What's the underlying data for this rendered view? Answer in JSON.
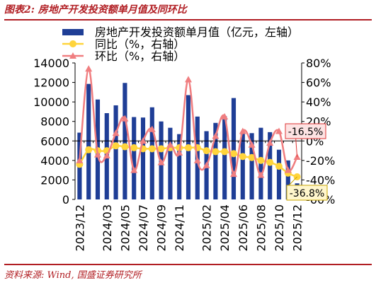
{
  "figure": {
    "title": "图表2:  房地产开发投资额单月值及同环比",
    "source": "资料来源:  Wind,  国盛证券研究所"
  },
  "colors": {
    "accent": "#b11e23",
    "bar": "#1f3e96",
    "yoy_line": "#ffd43b",
    "mom_line": "#f07e80",
    "yoy_callout_bg": "#fff6cc",
    "mom_callout_bg": "#fde3e3"
  },
  "chart_data": {
    "type": "bar+line",
    "categories": [
      "2023/12",
      "2024/01",
      "2024/02",
      "2024/03",
      "2024/04",
      "2024/05",
      "2024/06",
      "2024/07",
      "2024/08",
      "2024/09",
      "2024/10",
      "2024/11",
      "2024/12",
      "2025/01",
      "2025/02",
      "2025/03",
      "2025/04",
      "2025/05",
      "2025/06",
      "2025/07",
      "2025/08",
      "2025/09",
      "2025/10",
      "2025/11",
      "2025/12"
    ],
    "x_tick_labels": [
      "2023/12",
      "2024/03",
      "2024/05",
      "2024/07",
      "2024/09",
      "2024/11",
      "2025/02",
      "2025/04",
      "2025/06",
      "2025/08",
      "2025/10",
      "2025/12"
    ],
    "series": [
      {
        "name": "房地产开发投资额单月值（亿元，左轴）",
        "type": "bar",
        "axis": "left",
        "values": [
          6850,
          11850,
          10250,
          8850,
          9650,
          11950,
          8450,
          8400,
          9450,
          8000,
          7350,
          6700,
          10700,
          8500,
          7000,
          7850,
          8550,
          10400,
          6950,
          6800,
          7350,
          6900,
          5100,
          4000,
          1650
        ]
      },
      {
        "name": "同比（%，右轴）",
        "type": "line",
        "axis": "right",
        "values": [
          -24,
          -9,
          -10,
          -10,
          -5,
          -6,
          -7,
          -8,
          -8,
          -8,
          -7,
          -7,
          -7,
          -7,
          -10,
          -11,
          -11,
          -13,
          -16,
          -17,
          -20,
          -22,
          -26,
          -33,
          -36.8
        ]
      },
      {
        "name": "环比（%，右轴）",
        "type": "line",
        "axis": "right",
        "values": [
          -20,
          74,
          -14,
          -15,
          8,
          23,
          -30,
          0,
          12,
          -22,
          -4,
          -12,
          63,
          -20,
          -25,
          5,
          25,
          -34,
          10,
          -4,
          -35,
          -2,
          10,
          -30,
          -16.5
        ]
      }
    ],
    "callouts": [
      {
        "label": "-16.5%",
        "series": "环比（%，右轴）",
        "category": "2025/12"
      },
      {
        "label": "-36.8%",
        "series": "同比（%，右轴）",
        "category": "2025/12"
      }
    ],
    "y_left": {
      "min": 0,
      "max": 14000,
      "ticks": [
        0,
        2000,
        4000,
        6000,
        8000,
        10000,
        12000,
        14000
      ],
      "tick_labels": [
        "0",
        "2000",
        "4000",
        "6000",
        "8000",
        "10000",
        "12000",
        "14000"
      ]
    },
    "y_right": {
      "min": -60,
      "max": 80,
      "ticks": [
        -60,
        -40,
        -20,
        0,
        20,
        40,
        60,
        80
      ],
      "tick_labels": [
        "-60%",
        "-40%",
        "-20%",
        "0%",
        "20%",
        "40%",
        "60%",
        "80%"
      ]
    },
    "legend_placement": "top-left",
    "grid": false
  }
}
